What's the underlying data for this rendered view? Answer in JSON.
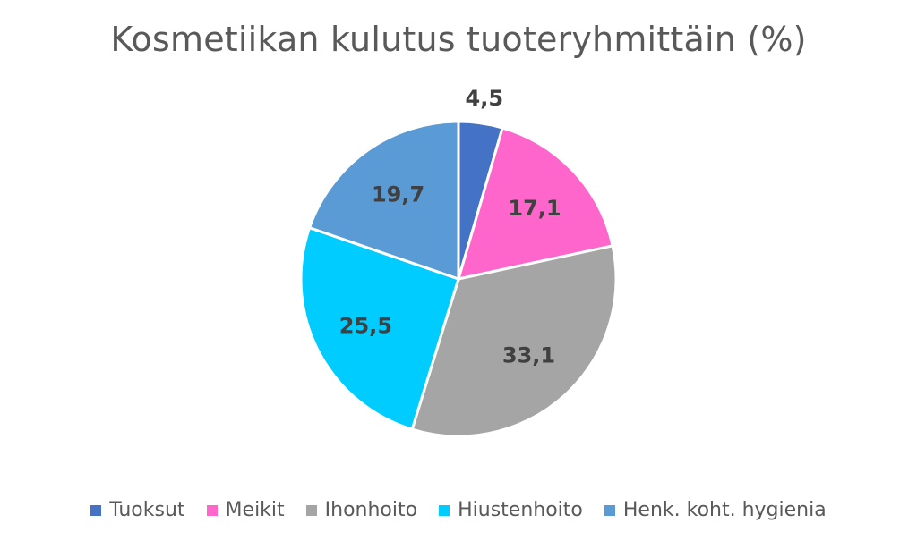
{
  "chart_data": {
    "type": "pie",
    "title": "Kosmetiikan kulutus tuoteryhmittäin (%)",
    "categories": [
      "Tuoksut",
      "Meikit",
      "Ihonhoito",
      "Hiustenhoito",
      "Henk. koht. hygienia"
    ],
    "values": [
      4.5,
      17.1,
      33.1,
      25.5,
      19.7
    ],
    "value_labels": [
      "4,5",
      "17,1",
      "33,1",
      "25,5",
      "19,7"
    ],
    "colors": [
      "#4472C4",
      "#FF66CC",
      "#A5A5A5",
      "#00CCFF",
      "#5B9BD5"
    ],
    "legend_position": "bottom",
    "start_angle": "12 o'clock",
    "direction": "clockwise"
  }
}
